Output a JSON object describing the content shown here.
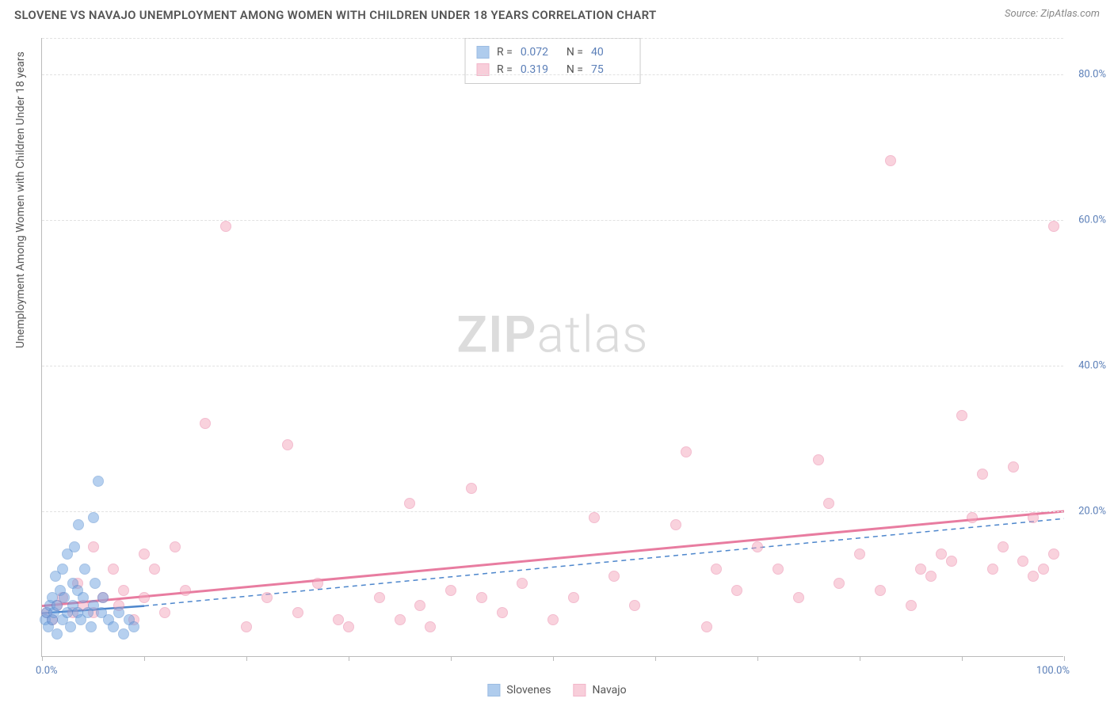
{
  "title": "SLOVENE VS NAVAJO UNEMPLOYMENT AMONG WOMEN WITH CHILDREN UNDER 18 YEARS CORRELATION CHART",
  "source": "Source: ZipAtlas.com",
  "watermark_zip": "ZIP",
  "watermark_atlas": "atlas",
  "y_axis_title": "Unemployment Among Women with Children Under 18 years",
  "chart": {
    "type": "scatter",
    "xlim": [
      0,
      100
    ],
    "ylim": [
      0,
      85
    ],
    "y_ticks": [
      20,
      40,
      60,
      80
    ],
    "y_tick_labels": [
      "20.0%",
      "40.0%",
      "60.0%",
      "80.0%"
    ],
    "x_ticks": [
      0,
      10,
      20,
      30,
      40,
      50,
      60,
      70,
      80,
      90,
      100
    ],
    "x_left_label": "0.0%",
    "x_right_label": "100.0%",
    "background_color": "#ffffff",
    "grid_color": "#e2e2e2",
    "axis_color": "#bbbbbb",
    "label_color": "#5b7fb8",
    "marker_radius": 7,
    "marker_opacity_fill": 0.25,
    "marker_border_width": 1.2
  },
  "series": {
    "slovenes": {
      "label": "Slovenes",
      "color": "#6fa3e0",
      "border_color": "#4d86cc",
      "R_label": "R =",
      "R": "0.072",
      "N_label": "N =",
      "N": "40",
      "trend": {
        "x1": 0,
        "y1": 6,
        "x2": 10,
        "y2": 7,
        "dash_x2": 100,
        "dash_y2": 19,
        "stroke_width": 2.5
      },
      "points": [
        [
          0.3,
          5
        ],
        [
          0.5,
          6
        ],
        [
          0.6,
          4
        ],
        [
          0.8,
          7
        ],
        [
          1.0,
          5
        ],
        [
          1.0,
          8
        ],
        [
          1.2,
          6
        ],
        [
          1.3,
          11
        ],
        [
          1.5,
          7
        ],
        [
          1.5,
          3
        ],
        [
          1.8,
          9
        ],
        [
          2.0,
          5
        ],
        [
          2.0,
          12
        ],
        [
          2.2,
          8
        ],
        [
          2.5,
          6
        ],
        [
          2.5,
          14
        ],
        [
          2.8,
          4
        ],
        [
          3.0,
          10
        ],
        [
          3.0,
          7
        ],
        [
          3.2,
          15
        ],
        [
          3.5,
          6
        ],
        [
          3.5,
          9
        ],
        [
          3.6,
          18
        ],
        [
          3.8,
          5
        ],
        [
          4.0,
          8
        ],
        [
          4.2,
          12
        ],
        [
          4.5,
          6
        ],
        [
          4.8,
          4
        ],
        [
          5.0,
          7
        ],
        [
          5.0,
          19
        ],
        [
          5.2,
          10
        ],
        [
          5.5,
          24
        ],
        [
          5.8,
          6
        ],
        [
          6.0,
          8
        ],
        [
          6.5,
          5
        ],
        [
          7.0,
          4
        ],
        [
          7.5,
          6
        ],
        [
          8.0,
          3
        ],
        [
          8.5,
          5
        ],
        [
          9.0,
          4
        ]
      ]
    },
    "navajo": {
      "label": "Navajo",
      "color": "#f4a7bd",
      "border_color": "#e87ca0",
      "R_label": "R =",
      "R": "0.319",
      "N_label": "N =",
      "N": "75",
      "trend": {
        "x1": 0,
        "y1": 7,
        "x2": 100,
        "y2": 20,
        "stroke_width": 3
      },
      "points": [
        [
          0.5,
          6
        ],
        [
          1,
          5
        ],
        [
          1.5,
          7
        ],
        [
          2,
          8
        ],
        [
          3,
          6
        ],
        [
          3.5,
          10
        ],
        [
          4,
          7
        ],
        [
          5,
          6
        ],
        [
          5,
          15
        ],
        [
          6,
          8
        ],
        [
          7,
          12
        ],
        [
          7.5,
          7
        ],
        [
          8,
          9
        ],
        [
          9,
          5
        ],
        [
          10,
          14
        ],
        [
          10,
          8
        ],
        [
          11,
          12
        ],
        [
          12,
          6
        ],
        [
          13,
          15
        ],
        [
          14,
          9
        ],
        [
          16,
          32
        ],
        [
          18,
          59
        ],
        [
          20,
          4
        ],
        [
          22,
          8
        ],
        [
          24,
          29
        ],
        [
          25,
          6
        ],
        [
          27,
          10
        ],
        [
          29,
          5
        ],
        [
          30,
          4
        ],
        [
          33,
          8
        ],
        [
          35,
          5
        ],
        [
          36,
          21
        ],
        [
          37,
          7
        ],
        [
          38,
          4
        ],
        [
          40,
          9
        ],
        [
          42,
          23
        ],
        [
          43,
          8
        ],
        [
          45,
          6
        ],
        [
          47,
          10
        ],
        [
          50,
          5
        ],
        [
          52,
          8
        ],
        [
          54,
          19
        ],
        [
          56,
          11
        ],
        [
          58,
          7
        ],
        [
          62,
          18
        ],
        [
          63,
          28
        ],
        [
          65,
          4
        ],
        [
          66,
          12
        ],
        [
          68,
          9
        ],
        [
          70,
          15
        ],
        [
          72,
          12
        ],
        [
          74,
          8
        ],
        [
          76,
          27
        ],
        [
          77,
          21
        ],
        [
          78,
          10
        ],
        [
          80,
          14
        ],
        [
          82,
          9
        ],
        [
          83,
          68
        ],
        [
          85,
          7
        ],
        [
          86,
          12
        ],
        [
          87,
          11
        ],
        [
          88,
          14
        ],
        [
          89,
          13
        ],
        [
          90,
          33
        ],
        [
          91,
          19
        ],
        [
          92,
          25
        ],
        [
          93,
          12
        ],
        [
          94,
          15
        ],
        [
          95,
          26
        ],
        [
          96,
          13
        ],
        [
          97,
          11
        ],
        [
          97,
          19
        ],
        [
          98,
          12
        ],
        [
          99,
          59
        ],
        [
          99,
          14
        ]
      ]
    }
  }
}
